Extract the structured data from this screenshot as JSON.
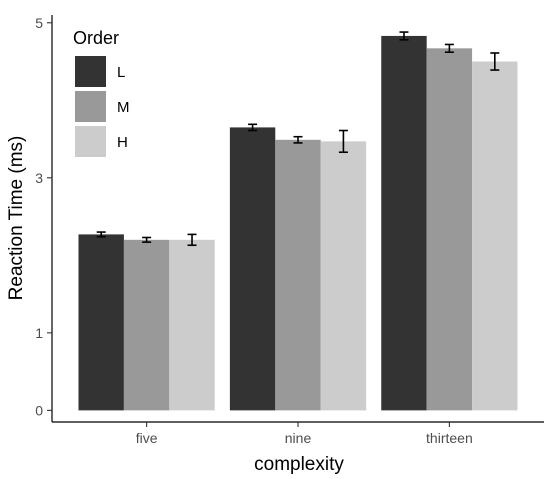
{
  "chart_data": {
    "type": "bar",
    "xlabel": "complexity",
    "ylabel": "Reaction Time (ms)",
    "categories": [
      "five",
      "nine",
      "thirteen"
    ],
    "yticks": [
      0,
      1,
      3,
      5
    ],
    "ylim": [
      -0.15,
      5.1
    ],
    "grid": false,
    "legend": {
      "title": "Order",
      "placement": "top-left"
    },
    "series": [
      {
        "name": "L",
        "color": "#333333",
        "values": [
          2.27,
          3.65,
          4.83
        ],
        "err": [
          0.03,
          0.04,
          0.05
        ]
      },
      {
        "name": "M",
        "color": "#999999",
        "values": [
          2.2,
          3.49,
          4.67
        ],
        "err": [
          0.03,
          0.04,
          0.05
        ]
      },
      {
        "name": "H",
        "color": "#cccccc",
        "values": [
          2.2,
          3.47,
          4.5
        ],
        "err": [
          0.07,
          0.14,
          0.11
        ]
      }
    ]
  }
}
